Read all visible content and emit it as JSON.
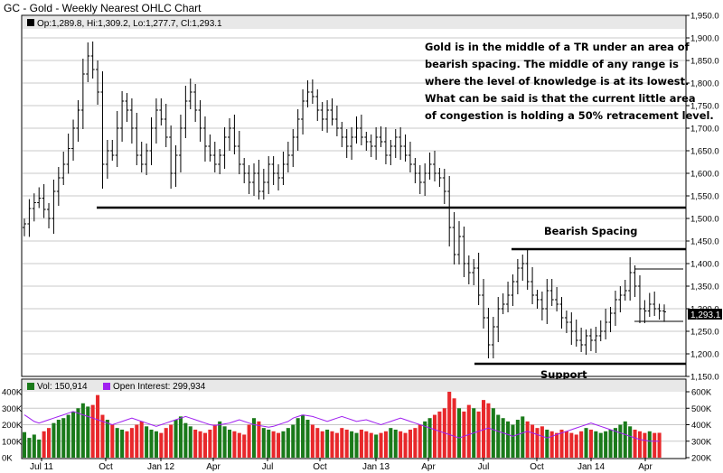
{
  "chart_data": {
    "type": "ohlc",
    "title": "GC - Gold - Weekly Nearest OHLC Chart",
    "price_panel": {
      "legend": "Op:1,289.8, Hi:1,309.2, Lo:1,277.7, Cl:1,293.1",
      "ylim": [
        1150,
        1950
      ],
      "yticks": [
        "1,950.0",
        "1,900.0",
        "1,850.0",
        "1,800.0",
        "1,750.0",
        "1,700.0",
        "1,650.0",
        "1,600.0",
        "1,550.0",
        "1,500.0",
        "1,450.0",
        "1,400.0",
        "1,350.0",
        "1,300.0",
        "1,250.0",
        "1,200.0",
        "1,150.0"
      ],
      "last_close_label": "1,293.1",
      "annotation_lines": [
        "Gold is in the middle of a TR under an area of",
        "bearish spacing.  The middle of any range is",
        "where the level of knowledge is at its lowest.",
        "What can be said is that the current little area",
        "of congestion is holding a 50% retracement  level."
      ],
      "labels": {
        "bearish_spacing": "Bearish Spacing",
        "support": "Support"
      },
      "levels": {
        "long_support": 1527,
        "spacing_top": 1432,
        "support_low": 1180,
        "range_high": 1388,
        "range_low": 1276
      },
      "closes": [
        1488,
        1522,
        1535,
        1545,
        1520,
        1500,
        1560,
        1590,
        1620,
        1655,
        1700,
        1740,
        1820,
        1860,
        1830,
        1780,
        1620,
        1650,
        1640,
        1700,
        1760,
        1740,
        1700,
        1640,
        1620,
        1650,
        1700,
        1740,
        1720,
        1680,
        1600,
        1640,
        1700,
        1760,
        1780,
        1740,
        1700,
        1660,
        1640,
        1620,
        1640,
        1680,
        1700,
        1660,
        1620,
        1600,
        1580,
        1600,
        1560,
        1580,
        1620,
        1600,
        1590,
        1620,
        1640,
        1680,
        1720,
        1760,
        1780,
        1770,
        1740,
        1720,
        1740,
        1720,
        1700,
        1680,
        1660,
        1680,
        1700,
        1680,
        1670,
        1660,
        1680,
        1670,
        1640,
        1660,
        1680,
        1660,
        1640,
        1620,
        1600,
        1580,
        1600,
        1620,
        1600,
        1590,
        1560,
        1480,
        1420,
        1460,
        1400,
        1380,
        1390,
        1330,
        1280,
        1220,
        1260,
        1300,
        1310,
        1330,
        1360,
        1390,
        1400,
        1360,
        1330,
        1320,
        1300,
        1340,
        1320,
        1310,
        1280,
        1270,
        1250,
        1230,
        1220,
        1240,
        1230,
        1240,
        1250,
        1270,
        1290,
        1320,
        1330,
        1340,
        1380,
        1350,
        1300,
        1295,
        1310,
        1300,
        1295,
        1293.1
      ]
    },
    "volume_panel": {
      "legend_vol": "Vol: 150,914",
      "legend_oi": "Open Interest: 299,934",
      "vol_ylim": [
        0,
        400000
      ],
      "vol_ticks": [
        "400K",
        "300K",
        "200K",
        "100K",
        "0K"
      ],
      "oi_ylim": [
        200000,
        600000
      ],
      "oi_ticks": [
        "600K",
        "500K",
        "400K",
        "300K",
        "200K"
      ],
      "volumes": [
        155000,
        120000,
        140000,
        110000,
        160000,
        180000,
        210000,
        230000,
        240000,
        260000,
        280000,
        300000,
        330000,
        310000,
        320000,
        380000,
        260000,
        230000,
        200000,
        180000,
        170000,
        160000,
        180000,
        200000,
        220000,
        190000,
        170000,
        160000,
        150000,
        180000,
        200000,
        230000,
        250000,
        210000,
        190000,
        170000,
        160000,
        150000,
        170000,
        200000,
        220000,
        190000,
        170000,
        160000,
        150000,
        140000,
        200000,
        240000,
        220000,
        180000,
        170000,
        160000,
        150000,
        160000,
        180000,
        200000,
        240000,
        260000,
        230000,
        200000,
        180000,
        160000,
        170000,
        160000,
        150000,
        180000,
        170000,
        160000,
        150000,
        170000,
        160000,
        150000,
        140000,
        150000,
        160000,
        180000,
        170000,
        160000,
        150000,
        170000,
        180000,
        200000,
        220000,
        240000,
        260000,
        280000,
        300000,
        400000,
        360000,
        300000,
        280000,
        320000,
        300000,
        280000,
        350000,
        330000,
        300000,
        260000,
        240000,
        220000,
        200000,
        230000,
        250000,
        220000,
        200000,
        180000,
        190000,
        170000,
        160000,
        150000,
        170000,
        160000,
        150000,
        140000,
        160000,
        180000,
        170000,
        160000,
        150000,
        160000,
        170000,
        180000,
        200000,
        220000,
        190000,
        170000,
        160000,
        150000,
        160000,
        150000,
        150914
      ],
      "open_interest": [
        460000,
        440000,
        420000,
        410000,
        420000,
        430000,
        440000,
        450000,
        460000,
        470000,
        480000,
        470000,
        460000,
        450000,
        440000,
        430000,
        420000,
        410000,
        400000,
        410000,
        420000,
        430000,
        440000,
        430000,
        420000,
        410000,
        400000,
        390000,
        400000,
        410000,
        420000,
        430000,
        440000,
        450000,
        440000,
        430000,
        420000,
        410000,
        400000,
        395000,
        400000,
        405000,
        410000,
        420000,
        430000,
        420000,
        410000,
        400000,
        395000,
        390000,
        385000,
        390000,
        400000,
        410000,
        420000,
        440000,
        450000,
        460000,
        455000,
        450000,
        440000,
        430000,
        420000,
        430000,
        440000,
        450000,
        440000,
        430000,
        420000,
        425000,
        430000,
        420000,
        410000,
        400000,
        410000,
        420000,
        430000,
        440000,
        430000,
        420000,
        410000,
        400000,
        390000,
        380000,
        370000,
        360000,
        350000,
        340000,
        330000,
        320000,
        330000,
        340000,
        350000,
        360000,
        370000,
        380000,
        370000,
        360000,
        350000,
        340000,
        330000,
        340000,
        350000,
        360000,
        350000,
        340000,
        330000,
        320000,
        330000,
        340000,
        350000,
        360000,
        370000,
        380000,
        390000,
        400000,
        410000,
        400000,
        390000,
        380000,
        370000,
        360000,
        350000,
        340000,
        330000,
        320000,
        310000,
        305000,
        300000,
        300000,
        299934
      ]
    },
    "x_labels": [
      "Jul 11",
      "Oct",
      "Jan 12",
      "Apr",
      "Jul",
      "Oct",
      "Jan 13",
      "Apr",
      "Jul",
      "Oct",
      "Jan 14",
      "Apr"
    ]
  }
}
